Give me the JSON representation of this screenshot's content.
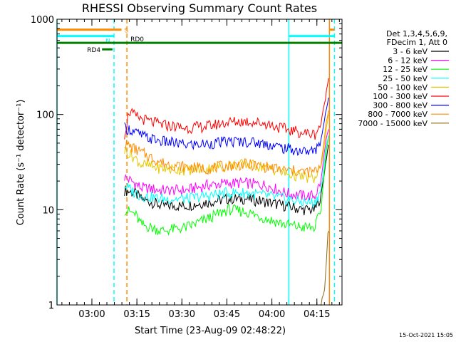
{
  "page": {
    "title": "RHESSI Observing Summary Count Rates",
    "timestamp": "15-Oct-2021 15:05"
  },
  "chart_data": {
    "type": "line",
    "title": "RHESSI Observing Summary Count Rates",
    "xlabel": "Start Time (23-Aug-09 02:48:22)",
    "ylabel": "Count Rate (s⁻¹ detector⁻¹)",
    "x_unit": "minutes after 02:48:22",
    "xlim": [
      0,
      95
    ],
    "ylim": [
      1,
      1000
    ],
    "yscale": "log",
    "grid": false,
    "legend_position": "right",
    "legend_header": [
      "Det 1,3,4,5,6,9,",
      "FDecim 1, Att 0"
    ],
    "xticks": [
      {
        "x": 11.63,
        "label": "03:00"
      },
      {
        "x": 26.63,
        "label": "03:15"
      },
      {
        "x": 41.63,
        "label": "03:30"
      },
      {
        "x": 56.63,
        "label": "03:45"
      },
      {
        "x": 71.63,
        "label": "04:00"
      },
      {
        "x": 86.63,
        "label": "04:15"
      }
    ],
    "yticks": [
      {
        "y": 1,
        "label": "1"
      },
      {
        "y": 10,
        "label": "10"
      },
      {
        "y": 100,
        "label": "100"
      },
      {
        "y": 1000,
        "label": "1000"
      }
    ],
    "data_start": 22.5,
    "data_end": 90.8,
    "series": [
      {
        "name": "3 - 6 keV",
        "color": "#000000",
        "values": [
          {
            "x": 22.5,
            "y": 16
          },
          {
            "x": 26,
            "y": 15
          },
          {
            "x": 28,
            "y": 13
          },
          {
            "x": 35,
            "y": 11
          },
          {
            "x": 43,
            "y": 11
          },
          {
            "x": 50,
            "y": 12
          },
          {
            "x": 57,
            "y": 13
          },
          {
            "x": 63,
            "y": 13
          },
          {
            "x": 70,
            "y": 12
          },
          {
            "x": 76,
            "y": 11
          },
          {
            "x": 82,
            "y": 10
          },
          {
            "x": 86,
            "y": 10
          },
          {
            "x": 88,
            "y": 14
          },
          {
            "x": 89.5,
            "y": 30
          },
          {
            "x": 90.5,
            "y": 48
          }
        ]
      },
      {
        "name": "6 - 12 keV",
        "color": "#ff00ff",
        "values": [
          {
            "x": 22.5,
            "y": 22
          },
          {
            "x": 26,
            "y": 19
          },
          {
            "x": 28,
            "y": 17
          },
          {
            "x": 35,
            "y": 16
          },
          {
            "x": 43,
            "y": 16
          },
          {
            "x": 50,
            "y": 18
          },
          {
            "x": 57,
            "y": 19
          },
          {
            "x": 63,
            "y": 19
          },
          {
            "x": 70,
            "y": 18
          },
          {
            "x": 76,
            "y": 15
          },
          {
            "x": 82,
            "y": 14
          },
          {
            "x": 86,
            "y": 14
          },
          {
            "x": 88,
            "y": 20
          },
          {
            "x": 89.5,
            "y": 50
          },
          {
            "x": 90.5,
            "y": 70
          }
        ]
      },
      {
        "name": "12 - 25 keV",
        "color": "#00ff00",
        "values": [
          {
            "x": 22.5,
            "y": 10
          },
          {
            "x": 26,
            "y": 9
          },
          {
            "x": 28,
            "y": 7
          },
          {
            "x": 35,
            "y": 6
          },
          {
            "x": 43,
            "y": 6.5
          },
          {
            "x": 50,
            "y": 8
          },
          {
            "x": 57,
            "y": 10
          },
          {
            "x": 63,
            "y": 9.5
          },
          {
            "x": 70,
            "y": 8
          },
          {
            "x": 76,
            "y": 7
          },
          {
            "x": 82,
            "y": 6.5
          },
          {
            "x": 86,
            "y": 6.5
          },
          {
            "x": 88,
            "y": 10
          },
          {
            "x": 89.5,
            "y": 35
          },
          {
            "x": 90.5,
            "y": 60
          }
        ]
      },
      {
        "name": "25 - 50 keV",
        "color": "#00ffff",
        "values": [
          {
            "x": 22.5,
            "y": 18
          },
          {
            "x": 26,
            "y": 15
          },
          {
            "x": 28,
            "y": 14
          },
          {
            "x": 35,
            "y": 13
          },
          {
            "x": 43,
            "y": 13
          },
          {
            "x": 50,
            "y": 14
          },
          {
            "x": 57,
            "y": 15
          },
          {
            "x": 63,
            "y": 15
          },
          {
            "x": 70,
            "y": 14
          },
          {
            "x": 76,
            "y": 13
          },
          {
            "x": 82,
            "y": 12
          },
          {
            "x": 86,
            "y": 12
          },
          {
            "x": 88,
            "y": 16
          },
          {
            "x": 89.5,
            "y": 40
          },
          {
            "x": 90.5,
            "y": 60
          }
        ]
      },
      {
        "name": "50 - 100 keV",
        "color": "#e6c800",
        "values": [
          {
            "x": 22.5,
            "y": 42
          },
          {
            "x": 26,
            "y": 35
          },
          {
            "x": 28,
            "y": 30
          },
          {
            "x": 35,
            "y": 27
          },
          {
            "x": 43,
            "y": 26
          },
          {
            "x": 50,
            "y": 27
          },
          {
            "x": 57,
            "y": 29
          },
          {
            "x": 63,
            "y": 30
          },
          {
            "x": 70,
            "y": 28
          },
          {
            "x": 76,
            "y": 24
          },
          {
            "x": 82,
            "y": 22
          },
          {
            "x": 86,
            "y": 21
          },
          {
            "x": 88,
            "y": 28
          },
          {
            "x": 89.5,
            "y": 60
          },
          {
            "x": 90.5,
            "y": 100
          }
        ]
      },
      {
        "name": "100 - 300 keV",
        "color": "#ff0000",
        "values": [
          {
            "x": 22.5,
            "y": 62
          },
          {
            "x": 24,
            "y": 108
          },
          {
            "x": 26,
            "y": 96
          },
          {
            "x": 30,
            "y": 86
          },
          {
            "x": 35,
            "y": 78
          },
          {
            "x": 43,
            "y": 72
          },
          {
            "x": 50,
            "y": 75
          },
          {
            "x": 57,
            "y": 83
          },
          {
            "x": 63,
            "y": 85
          },
          {
            "x": 70,
            "y": 80
          },
          {
            "x": 76,
            "y": 70
          },
          {
            "x": 82,
            "y": 64
          },
          {
            "x": 86,
            "y": 62
          },
          {
            "x": 88,
            "y": 80
          },
          {
            "x": 89.5,
            "y": 150
          },
          {
            "x": 90.5,
            "y": 240
          }
        ]
      },
      {
        "name": "300 - 800 keV",
        "color": "#0000ff",
        "values": [
          {
            "x": 22.5,
            "y": 72
          },
          {
            "x": 24,
            "y": 70
          },
          {
            "x": 26,
            "y": 65
          },
          {
            "x": 30,
            "y": 57
          },
          {
            "x": 35,
            "y": 52
          },
          {
            "x": 43,
            "y": 48
          },
          {
            "x": 50,
            "y": 49
          },
          {
            "x": 57,
            "y": 52
          },
          {
            "x": 63,
            "y": 52
          },
          {
            "x": 70,
            "y": 49
          },
          {
            "x": 76,
            "y": 44
          },
          {
            "x": 82,
            "y": 41
          },
          {
            "x": 86,
            "y": 41
          },
          {
            "x": 88,
            "y": 55
          },
          {
            "x": 89.5,
            "y": 100
          },
          {
            "x": 90.5,
            "y": 150
          }
        ]
      },
      {
        "name": "800 - 7000 keV",
        "color": "#ff8c00",
        "values": [
          {
            "x": 22.5,
            "y": 50
          },
          {
            "x": 26,
            "y": 43
          },
          {
            "x": 28,
            "y": 40
          },
          {
            "x": 35,
            "y": 31
          },
          {
            "x": 43,
            "y": 28
          },
          {
            "x": 50,
            "y": 27
          },
          {
            "x": 57,
            "y": 29
          },
          {
            "x": 63,
            "y": 30
          },
          {
            "x": 70,
            "y": 28
          },
          {
            "x": 76,
            "y": 26
          },
          {
            "x": 82,
            "y": 25
          },
          {
            "x": 86,
            "y": 25
          },
          {
            "x": 88,
            "y": 30
          },
          {
            "x": 89.5,
            "y": 70
          },
          {
            "x": 90.5,
            "y": 110
          }
        ]
      },
      {
        "name": "7000 - 15000 keV",
        "color": "#8b6914",
        "values": [
          {
            "x": 88,
            "y": 1
          },
          {
            "x": 89.2,
            "y": 1.5
          },
          {
            "x": 89.8,
            "y": 3
          },
          {
            "x": 90.3,
            "y": 5.5
          },
          {
            "x": 90.6,
            "y": 6
          }
        ]
      }
    ],
    "flags": [
      {
        "label": "S",
        "color": "#ff8c00",
        "y": 777,
        "segments": [
          [
            0,
            21.5
          ],
          [
            90.8,
            92.5
          ]
        ]
      },
      {
        "label": "N",
        "color": "#00ffff",
        "y": 665,
        "segments": [
          [
            0,
            19
          ],
          [
            77.3,
            92.5
          ]
        ]
      },
      {
        "label": "RD0",
        "color": "#008000",
        "y": 565,
        "segments": [
          [
            0,
            95
          ]
        ]
      },
      {
        "label": "RD4",
        "color": "#008000",
        "y": 483,
        "segments": [
          [
            15,
            18.5
          ]
        ]
      }
    ],
    "vlines": [
      {
        "x": 0,
        "color": "#00ffff",
        "style": "solid"
      },
      {
        "x": 19,
        "color": "#00ffff",
        "style": "dashed"
      },
      {
        "x": 23.3,
        "color": "#ff8c00",
        "style": "dashed"
      },
      {
        "x": 77.3,
        "color": "#00ffff",
        "style": "solid"
      },
      {
        "x": 90.8,
        "color": "#ff8c00",
        "style": "solid"
      },
      {
        "x": 92.5,
        "color": "#00ffff",
        "style": "dashed"
      }
    ]
  }
}
